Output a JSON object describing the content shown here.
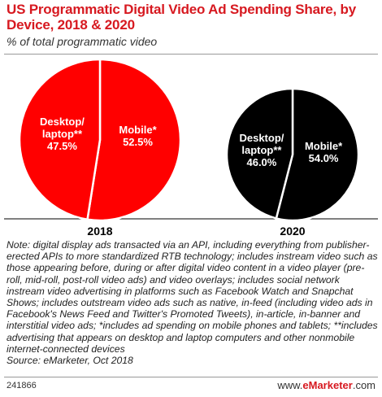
{
  "header": {
    "title": "US Programmatic Digital Video Ad Spending Share, by Device, 2018 & 2020",
    "subtitle": "% of total programmatic video"
  },
  "chart_data": [
    {
      "type": "pie",
      "title": "2018",
      "categories": [
        "Desktop/ laptop**",
        "Mobile*"
      ],
      "values": [
        47.5,
        52.5
      ],
      "colors": [
        "#ff0000",
        "#ff0000"
      ],
      "value_labels": [
        "47.5%",
        "52.5%"
      ]
    },
    {
      "type": "pie",
      "title": "2020",
      "categories": [
        "Desktop/ laptop**",
        "Mobile*"
      ],
      "values": [
        46.0,
        54.0
      ],
      "colors": [
        "#000000",
        "#000000"
      ],
      "value_labels": [
        "46.0%",
        "54.0%"
      ]
    }
  ],
  "labels": {
    "desktop_line1": "Desktop/",
    "desktop_line2": "laptop**",
    "mobile": "Mobile*"
  },
  "footer": {
    "note": "Note: digital display ads transacted via an API, including everything from publisher-erected APIs to more standardized RTB technology; includes instream video such as those appearing before, during or after digital video content in a video player (pre-roll, mid-roll, post-roll video ads) and video overlays; includes social network instream video advertising in platforms such as Facebook Watch and Snapchat Shows; includes outstream video ads such as native, in-feed (including video ads in Facebook's News Feed and Twitter's Promoted Tweets), in-article, in-banner and interstitial video ads; *includes ad spending on mobile phones and tablets; **includes advertising that appears on desktop and laptop computers and other nonmobile internet-connected devices",
    "source": "Source: eMarketer, Oct 2018",
    "chart_id": "241866",
    "brand_prefix": "www.",
    "brand_name": "eMarketer",
    "brand_suffix": ".com"
  }
}
